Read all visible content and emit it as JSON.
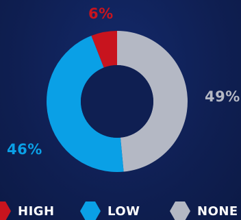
{
  "chart_data": {
    "type": "pie",
    "categories": [
      "HIGH",
      "LOW",
      "NONE"
    ],
    "values": [
      6,
      46,
      49
    ],
    "labels": [
      "6%",
      "46%",
      "49%"
    ],
    "colors": [
      "#c8141e",
      "#0aa0e6",
      "#b4b8c4"
    ],
    "donut": true,
    "legend_position": "bottom"
  },
  "legend": {
    "items": [
      {
        "label": "HIGH",
        "color": "#c8141e"
      },
      {
        "label": "LOW",
        "color": "#0aa0e6"
      },
      {
        "label": "NONE",
        "color": "#b4b8c4"
      }
    ]
  },
  "background": "#0f1f52",
  "hole_color": "#0f1f52"
}
